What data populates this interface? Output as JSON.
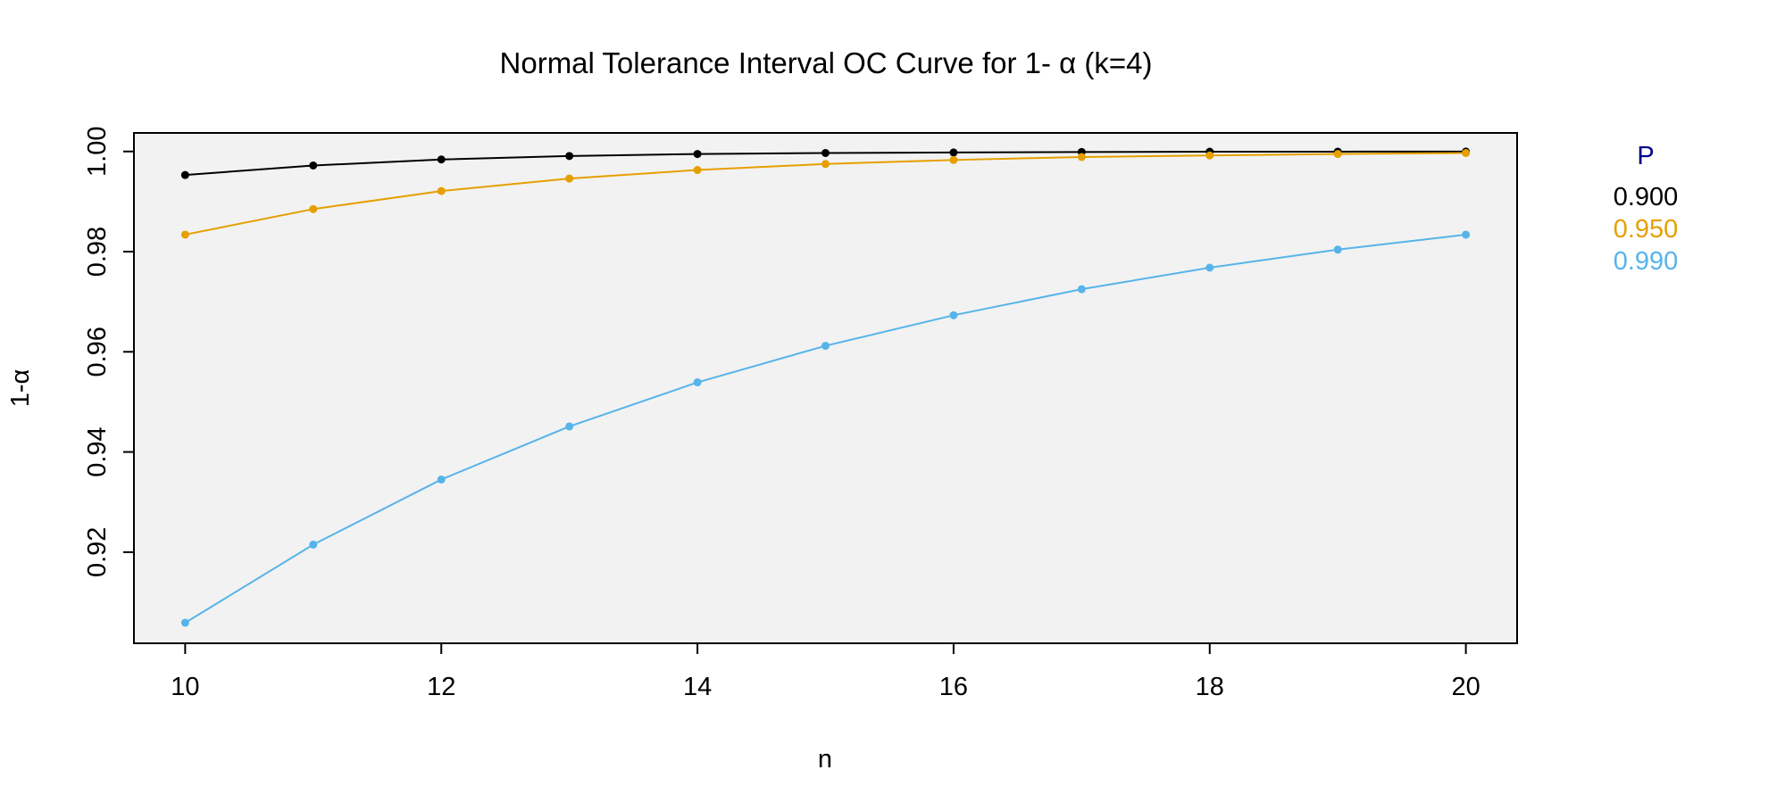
{
  "chart_data": {
    "type": "line",
    "title": "Normal Tolerance Interval OC Curve for 1- α (k=4)",
    "xlabel": "n",
    "ylabel": "1-α",
    "x": [
      10,
      11,
      12,
      13,
      14,
      15,
      16,
      17,
      18,
      19,
      20
    ],
    "xlim": [
      9.6,
      20.4
    ],
    "ylim": [
      0.9018,
      1.0037
    ],
    "x_ticks": [
      "10",
      "12",
      "14",
      "16",
      "18",
      "20"
    ],
    "y_ticks": [
      "0.92",
      "0.94",
      "0.96",
      "0.98",
      "1.00"
    ],
    "plot_background": "#f2f2f2",
    "grid": false,
    "legend_title": "P",
    "legend_title_color": "#00008b",
    "legend_position": "right",
    "series": [
      {
        "name": "0.900",
        "color": "#000000",
        "values": [
          0.9953,
          0.9972,
          0.9984,
          0.9991,
          0.9995,
          0.9997,
          0.9998,
          0.9999,
          0.99995,
          0.99997,
          0.99998
        ]
      },
      {
        "name": "0.950",
        "color": "#e69f00",
        "values": [
          0.9834,
          0.9885,
          0.9921,
          0.9946,
          0.9963,
          0.9975,
          0.9983,
          0.9989,
          0.9992,
          0.9995,
          0.9997
        ]
      },
      {
        "name": "0.990",
        "color": "#56b4e9",
        "values": [
          0.9059,
          0.9215,
          0.9345,
          0.9451,
          0.9539,
          0.9612,
          0.9673,
          0.9725,
          0.9768,
          0.9804,
          0.9834
        ]
      }
    ]
  }
}
